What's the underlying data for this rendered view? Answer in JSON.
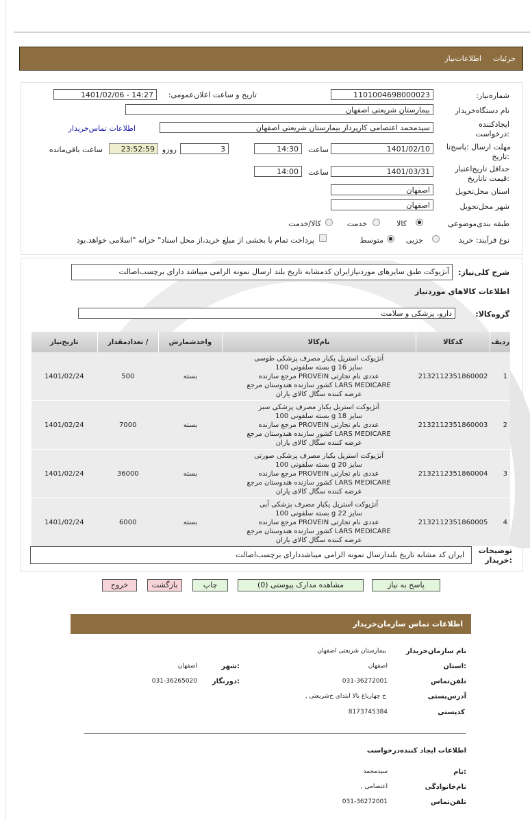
{
  "header": {
    "tab1": "جزئیات",
    "tab2": "اطلاعات‌نیاز"
  },
  "form": {
    "need_number_label": "شماره‌نیاز:",
    "need_number": "1101004698000023",
    "announce_label": "تاریخ و ساعت اعلان‌عمومی:",
    "announce_value": "1401/02/06 - 14:27",
    "buyer_org_label": "نام دستگاه‌خریدار",
    "buyer_org": "بیمارستان شریعتی اصفهان",
    "creator_label_1": "ایجادکننده",
    "creator_label_2": ":درخواست",
    "creator": "سیدمحمد اعتصامی کارپرداز بیمارستان شریعتی اصفهان",
    "buyer_contact_link": "اطلاعات تماس‌خریدار",
    "deadline_label_1": "مهلت ارسال :پاسخ‌تا",
    "deadline_label_2": ":تاریخ",
    "deadline_date": "1401/02/10",
    "time_label": "ساعت",
    "deadline_time": "14:30",
    "days": "3",
    "days_label": "روزو",
    "countdown": "23:52:59",
    "remaining_label": "ساعت باقی‌مانده",
    "validity_label_1": "حداقل تاریخ‌اعتبار",
    "validity_label_2": ":قیمت تا‌تاریخ",
    "validity_date": "1401/03/31",
    "validity_time": "14:00",
    "province_label": "استان محل‌تحویل",
    "province": "اصفهان",
    "city_label": "شهر محل‌تحویل",
    "city": "اصفهان",
    "category_label": "طبقه بندی‌موضوعی",
    "category_options": [
      "کالا",
      "خدمت",
      "کالا/خدمت"
    ],
    "category_selected": "کالا",
    "process_label": "نوع فرآیند: خرید",
    "process_options": [
      "جزیی",
      "متوسط"
    ],
    "process_selected": "متوسط",
    "treasury_text": "پرداخت تمام یا بخشی از مبلغ خرید،از محل اسناد\" خزانه \"اسلامی خواهد.بود",
    "treasury_checked": false
  },
  "details": {
    "summary_label": "شرح کلی‌نیاز:",
    "summary": "آنژیوکت طبق سایزهای موردنیازایران کدمشابه تاریخ بلند ارسال نمونه الزامی میباشد دارای برچسب‌اصالت",
    "goods_title": "اطلاعات کالاهای موردنیاز",
    "group_label": "گروه‌کالا:",
    "group": "دارو، پزشکی و سلامت",
    "table": {
      "headers": [
        "ردیف",
        "کدکالا",
        "نام‌کالا",
        "واحدشمارش",
        "/ تعدادمقدار",
        "تاریخ‌نیاز"
      ],
      "rows": [
        {
          "n": "1",
          "code": "2132112351860002",
          "name": [
            "آنژیوکت استریل یکبار مصرف پزشکی طوسی",
            "سایز g 16 بسته سلفونی 100",
            "عددی نام تجارتی PROVEIN مرجع سازنده",
            "LARS MEDICARE کشور سازنده هندوستان مرجع",
            "عرضه کننده سگال کالای یاران"
          ],
          "unit": "بسته",
          "qty": "500",
          "date": "1401/02/24"
        },
        {
          "n": "2",
          "code": "2132112351860003",
          "name": [
            "آنژیوکت استریل یکبار مصرف پزشکی سبز",
            "سایز g 18 بسته سلفونی 100",
            "عددی نام تجارتی PROVEIN مرجع سازنده",
            "LARS MEDICARE کشور سازنده هندوستان مرجع",
            "عرضه کننده سگال کالای یاران"
          ],
          "unit": "بسته",
          "qty": "7000",
          "date": "1401/02/24"
        },
        {
          "n": "3",
          "code": "2132112351860004",
          "name": [
            "آنژیوکت استریل یکبار مصرف پزشکی صورتی",
            "سایز g 20 بسته سلفونی 100",
            "عددی نام تجارتی PROVEIN مرجع سازنده",
            "LARS MEDICARE کشور سازنده هندوستان مرجع",
            "عرضه کننده سگال کالای یاران"
          ],
          "unit": "بسته",
          "qty": "36000",
          "date": "1401/02/24"
        },
        {
          "n": "4",
          "code": "2132112351860005",
          "name": [
            "آنژیوکت استریل یکبار مصرف پزشکی آبی",
            "سایز g 22 بسته سلفونی 100",
            "عددی نام تجارتی PROVEIN مرجع سازنده",
            "LARS MEDICARE کشور سازنده هندوستان مرجع",
            "عرضه کننده سگال کالای یاران"
          ],
          "unit": "بسته",
          "qty": "6000",
          "date": "1401/02/24"
        }
      ]
    },
    "notes_label_1": "توضیحات",
    "notes_label_2": ":خریدار",
    "notes": "ایران کد مشابه تاریخ بلندارسال نمونه الزامی میباشددارای برچسب‌اصالت"
  },
  "buttons": {
    "reply": "پاسخ به نیاز",
    "attachments": "مشاهده مدارک پیوستی (0)",
    "print": "چاپ",
    "back": "بازگشت",
    "exit": "خروج"
  },
  "contact": {
    "title": "اطلاعات  تماس سازمان‌خریدار",
    "org_label": "نام سازمان‌خریدار",
    "org": "بیمارستان شریعتی اصفهان",
    "province_label": ":استان",
    "province": "اصفهان",
    "city_label": ":شهر",
    "city": "اصفهان",
    "phone_label": "تلفن‌تماس",
    "phone": "031-36272001",
    "fax_label": ":دورنگار",
    "fax": "031-36265020",
    "address_label": "آدرس‌پستی",
    "address": "خ چهارباغ بالا ابتدای خ‌شریعتی ,",
    "postal_label": "کد‌پستی",
    "postal": "8173745384",
    "creator_title": "اطلاعات ایجاد کننده‌درخواست",
    "first_name_label": ":نام",
    "first_name": "سیدمحمد",
    "last_name_label": "نام‌خانوادگی",
    "last_name": "اعتصامی ,",
    "creator_phone_label": "تلفن‌تماس",
    "creator_phone": "031-36272001"
  },
  "colors": {
    "brand_brown": "#8d6e40",
    "countdown_bg": "#eeeecc",
    "reply_button_bg": "#e3f5dc",
    "exit_button_bg": "#f7d4d8",
    "link": "#1a1aa6"
  }
}
